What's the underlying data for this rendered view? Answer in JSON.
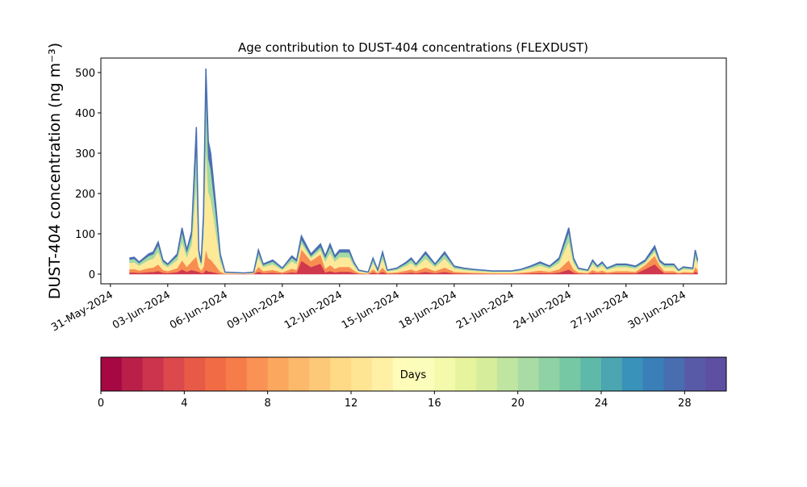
{
  "chart_data": {
    "type": "stacked_area",
    "title": "Age contribution to DUST-404 concentrations (FLEXDUST)",
    "y_label": "DUST-404 concentration (ng m⁻³)",
    "x": [
      "2024-06-01T00:00",
      "2024-06-01T06:00",
      "2024-06-01T12:00",
      "2024-06-02T00:00",
      "2024-06-02T06:00",
      "2024-06-02T12:00",
      "2024-06-02T18:00",
      "2024-06-03T00:00",
      "2024-06-03T12:00",
      "2024-06-03T18:00",
      "2024-06-04T00:00",
      "2024-06-04T06:00",
      "2024-06-04T12:00",
      "2024-06-04T15:00",
      "2024-06-04T18:00",
      "2024-06-04T21:00",
      "2024-06-05T00:00",
      "2024-06-05T03:00",
      "2024-06-05T06:00",
      "2024-06-05T12:00",
      "2024-06-05T18:00",
      "2024-06-06T00:00",
      "2024-06-06T12:00",
      "2024-06-07T00:00",
      "2024-06-07T12:00",
      "2024-06-07T18:00",
      "2024-06-08T00:00",
      "2024-06-08T12:00",
      "2024-06-09T00:00",
      "2024-06-09T12:00",
      "2024-06-09T18:00",
      "2024-06-10T00:00",
      "2024-06-10T12:00",
      "2024-06-11T00:00",
      "2024-06-11T06:00",
      "2024-06-11T12:00",
      "2024-06-11T18:00",
      "2024-06-12T00:00",
      "2024-06-12T12:00",
      "2024-06-12T18:00",
      "2024-06-13T00:00",
      "2024-06-13T12:00",
      "2024-06-13T18:00",
      "2024-06-14T00:00",
      "2024-06-14T06:00",
      "2024-06-14T12:00",
      "2024-06-15T00:00",
      "2024-06-15T12:00",
      "2024-06-15T18:00",
      "2024-06-16T00:00",
      "2024-06-16T12:00",
      "2024-06-16T18:00",
      "2024-06-17T00:00",
      "2024-06-17T12:00",
      "2024-06-18T00:00",
      "2024-06-18T12:00",
      "2024-06-19T00:00",
      "2024-06-20T00:00",
      "2024-06-21T00:00",
      "2024-06-21T12:00",
      "2024-06-22T00:00",
      "2024-06-22T12:00",
      "2024-06-23T00:00",
      "2024-06-23T12:00",
      "2024-06-24T00:00",
      "2024-06-24T06:00",
      "2024-06-24T12:00",
      "2024-06-25T00:00",
      "2024-06-25T06:00",
      "2024-06-25T12:00",
      "2024-06-25T18:00",
      "2024-06-26T00:00",
      "2024-06-26T12:00",
      "2024-06-27T00:00",
      "2024-06-27T12:00",
      "2024-06-28T00:00",
      "2024-06-28T12:00",
      "2024-06-28T18:00",
      "2024-06-29T00:00",
      "2024-06-29T12:00",
      "2024-06-29T18:00",
      "2024-06-30T00:00",
      "2024-06-30T12:00",
      "2024-06-30T15:00",
      "2024-06-30T18:00"
    ],
    "series": [
      {
        "color": "#d0384e",
        "values": [
          4,
          4.2,
          3,
          5,
          5.5,
          8,
          3.5,
          2.5,
          5,
          11.5,
          6,
          10.5,
          7.3,
          6,
          3,
          3,
          10.2,
          6.6,
          6,
          3.6,
          1,
          0.5,
          0.4,
          0.3,
          0.5,
          6,
          2.5,
          3.5,
          1.5,
          4.5,
          3.5,
          33.2,
          17.5,
          26.2,
          4.5,
          7.5,
          4.5,
          6,
          6,
          3,
          1,
          0.5,
          4,
          1,
          5.5,
          1,
          1.5,
          3,
          4,
          2.5,
          5.5,
          4,
          2.5,
          5.5,
          2,
          1.5,
          1.2,
          0.8,
          0.8,
          1.2,
          2,
          3,
          2,
          4,
          11.5,
          4,
          1.5,
          1,
          3.5,
          2,
          3,
          1.5,
          2.5,
          2.5,
          2,
          12.2,
          24.5,
          12.2,
          2.5,
          2.5,
          1,
          1.8,
          1.5,
          6,
          3.5
        ]
      },
      {
        "color": "#f88d52",
        "values": [
          8,
          8.4,
          6,
          10,
          11,
          16,
          7,
          5,
          10,
          23,
          12,
          21,
          36.5,
          12,
          6,
          15,
          51,
          33,
          30,
          18,
          5,
          1,
          0.8,
          0.6,
          1,
          12,
          5,
          7,
          3,
          9,
          7,
          28.5,
          15,
          22.5,
          9,
          15,
          9,
          12,
          12,
          6,
          2,
          1,
          8,
          2,
          11,
          2,
          3,
          6,
          8,
          5,
          11,
          8,
          5,
          11,
          4,
          3,
          2.4,
          1.6,
          1.6,
          2.4,
          4,
          6,
          4,
          8,
          23,
          8,
          3,
          2,
          7,
          4,
          6,
          3,
          5,
          5,
          4,
          10.5,
          21,
          10.5,
          5,
          5,
          2,
          3.6,
          3,
          12,
          7
        ]
      },
      {
        "color": "#fee999",
        "values": [
          16,
          16.8,
          12,
          20,
          22,
          32,
          14,
          10,
          20,
          46,
          24,
          42,
          182.5,
          24,
          12,
          75,
          255,
          165,
          150,
          90,
          25,
          2,
          1.6,
          1.2,
          2,
          24,
          10,
          14,
          6,
          18,
          14,
          14.3,
          7.5,
          11.3,
          18,
          30,
          18,
          24,
          24,
          12,
          4,
          2,
          16,
          4,
          22,
          4,
          6,
          12,
          16,
          10,
          22,
          16,
          10,
          22,
          8,
          6,
          4.8,
          3.2,
          3.2,
          4.8,
          8,
          12,
          8,
          16,
          46,
          16,
          6,
          4,
          14,
          8,
          12,
          6,
          10,
          10,
          8,
          5.3,
          10.5,
          5.3,
          10,
          10,
          4,
          7.2,
          6,
          24,
          14
        ]
      },
      {
        "color": "#a2d9a4",
        "values": [
          8,
          8.4,
          6,
          10,
          11,
          16,
          7,
          5,
          10,
          23,
          12,
          21,
          91.2,
          12,
          6,
          37.5,
          127.5,
          82.5,
          75,
          45,
          12.5,
          1,
          0.8,
          0.6,
          1,
          12,
          5,
          7,
          3,
          9,
          7,
          9.5,
          5,
          7.5,
          9,
          15,
          9,
          12,
          12,
          6,
          2,
          1,
          8,
          2,
          11,
          2,
          3,
          6,
          8,
          5,
          11,
          8,
          5,
          11,
          4,
          3,
          2.4,
          1.6,
          1.6,
          2.4,
          4,
          6,
          4,
          8,
          23,
          8,
          3,
          2,
          7,
          4,
          6,
          3,
          5,
          5,
          4,
          3.5,
          7,
          3.5,
          5,
          5,
          2,
          3.6,
          3,
          12,
          7
        ]
      },
      {
        "color": "#4a6fb2",
        "values": [
          4,
          4.2,
          3,
          5,
          5.5,
          8,
          3.5,
          2.5,
          5,
          11.5,
          6,
          10.5,
          47.5,
          6,
          3,
          19.5,
          66.3,
          42.9,
          39,
          23.4,
          6.5,
          0.5,
          0.4,
          0.3,
          0.5,
          6,
          2.5,
          3.5,
          1.5,
          4.5,
          3.5,
          9.5,
          5,
          7.5,
          4.5,
          7.5,
          4.5,
          6,
          6,
          3,
          1,
          0.5,
          4,
          1,
          5.5,
          1,
          1.5,
          3,
          4,
          2.5,
          5.5,
          4,
          2.5,
          5.5,
          2,
          1.5,
          1.2,
          0.8,
          0.8,
          1.2,
          2,
          3,
          2,
          4,
          11.5,
          4,
          1.5,
          1,
          3.5,
          2,
          3,
          1.5,
          2.5,
          2.5,
          2,
          3.5,
          7,
          3.5,
          2.5,
          2.5,
          1,
          1.8,
          1.5,
          6,
          3.5
        ]
      }
    ],
    "xlim": [
      "2024-05-30T12:00",
      "2024-07-02T06:00"
    ],
    "xticks": [
      {
        "value": "2024-05-31",
        "label": "31-May-2024"
      },
      {
        "value": "2024-06-03",
        "label": "03-Jun-2024"
      },
      {
        "value": "2024-06-06",
        "label": "06-Jun-2024"
      },
      {
        "value": "2024-06-09",
        "label": "09-Jun-2024"
      },
      {
        "value": "2024-06-12",
        "label": "12-Jun-2024"
      },
      {
        "value": "2024-06-15",
        "label": "15-Jun-2024"
      },
      {
        "value": "2024-06-18",
        "label": "18-Jun-2024"
      },
      {
        "value": "2024-06-21",
        "label": "21-Jun-2024"
      },
      {
        "value": "2024-06-24",
        "label": "24-Jun-2024"
      },
      {
        "value": "2024-06-27",
        "label": "27-Jun-2024"
      },
      {
        "value": "2024-06-30",
        "label": "30-Jun-2024"
      }
    ],
    "ylim": [
      -24,
      536
    ],
    "yticks": [
      0,
      100,
      200,
      300,
      400,
      500
    ],
    "colorbar": {
      "label": "Days",
      "lim": [
        0,
        30
      ],
      "ticks": [
        0,
        4,
        8,
        12,
        16,
        20,
        24,
        28
      ],
      "colors": [
        "#a50843",
        "#b91f48",
        "#cc334c",
        "#dc494c",
        "#e75a48",
        "#f16c44",
        "#f67c4a",
        "#f99254",
        "#fba75e",
        "#fdb96b",
        "#fdc978",
        "#fed986",
        "#fee593",
        "#fff0a6",
        "#fffbb8",
        "#fbfdba",
        "#f3faac",
        "#e6f59d",
        "#d6ee9b",
        "#c0e5a0",
        "#a9dca4",
        "#8fd2a4",
        "#76c8a5",
        "#5fb9a9",
        "#4ba6b1",
        "#3892b9",
        "#3a7fb8",
        "#486db0",
        "#585aa7",
        "#5e4fa2"
      ]
    }
  }
}
